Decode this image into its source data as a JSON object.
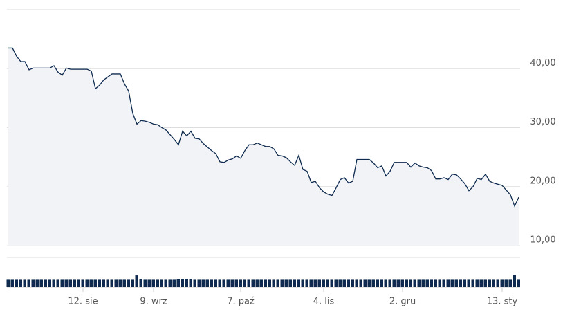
{
  "chart_data": {
    "type": "line",
    "categories": [
      null,
      null,
      null,
      null,
      null,
      null,
      null,
      null,
      null,
      null,
      null,
      null,
      null,
      null,
      null,
      null,
      null,
      null,
      "12. sie",
      null,
      null,
      null,
      null,
      null,
      null,
      null,
      null,
      null,
      null,
      null,
      null,
      null,
      null,
      null,
      null,
      "9. wrz",
      null,
      null,
      null,
      null,
      null,
      null,
      null,
      null,
      null,
      null,
      null,
      null,
      null,
      null,
      null,
      null,
      null,
      null,
      null,
      null,
      "7. paź",
      null,
      null,
      null,
      null,
      null,
      null,
      null,
      null,
      null,
      null,
      null,
      null,
      null,
      null,
      null,
      null,
      null,
      null,
      null,
      "4. lis",
      null,
      null,
      null,
      null,
      null,
      null,
      null,
      null,
      null,
      null,
      null,
      null,
      null,
      null,
      null,
      null,
      null,
      null,
      "2. gru",
      null,
      null,
      null,
      null,
      null,
      null,
      null,
      null,
      null,
      null,
      null,
      null,
      null,
      null,
      null,
      null,
      null,
      null,
      null,
      null,
      null,
      null,
      null,
      "13. sty",
      null,
      null,
      null,
      null
    ],
    "values": [
      43.5,
      43.5,
      42.1,
      41.2,
      41.2,
      39.8,
      40.1,
      40.1,
      40.1,
      40.1,
      40.1,
      40.5,
      39.4,
      38.9,
      40.1,
      39.9,
      39.9,
      39.9,
      39.9,
      39.9,
      39.6,
      36.6,
      37.2,
      38.1,
      38.6,
      39.1,
      39.1,
      39.1,
      37.4,
      36.2,
      32.4,
      30.6,
      31.2,
      31.1,
      30.9,
      30.6,
      30.5,
      30.0,
      29.6,
      28.8,
      28.0,
      27.1,
      29.4,
      28.6,
      29.4,
      28.2,
      28.1,
      27.3,
      26.7,
      26.1,
      25.6,
      24.2,
      24.1,
      24.5,
      24.7,
      25.2,
      24.8,
      26.1,
      27.1,
      27.1,
      27.4,
      27.1,
      26.8,
      26.8,
      26.4,
      25.3,
      25.2,
      24.9,
      24.2,
      23.6,
      25.3,
      22.9,
      22.6,
      20.7,
      20.9,
      19.8,
      19.1,
      18.7,
      18.5,
      19.8,
      21.2,
      21.5,
      20.6,
      20.9,
      24.6,
      24.6,
      24.6,
      24.6,
      24.0,
      23.2,
      23.5,
      21.8,
      22.6,
      24.1,
      24.1,
      24.1,
      24.1,
      23.3,
      24.0,
      23.5,
      23.3,
      23.2,
      22.7,
      21.3,
      21.3,
      21.5,
      21.2,
      22.1,
      22.0,
      21.3,
      20.5,
      19.3,
      20.0,
      21.4,
      21.2,
      22.1,
      20.9,
      20.6,
      20.4,
      20.2,
      19.4,
      18.6,
      16.7,
      18.2
    ],
    "volume": [
      10,
      10,
      10,
      10,
      10,
      10,
      10,
      10,
      10,
      10,
      10,
      10,
      10,
      10,
      10,
      10,
      10,
      10,
      10,
      10,
      10,
      10,
      10,
      10,
      10,
      10,
      10,
      10,
      10,
      10,
      10,
      16,
      11,
      10,
      10,
      10,
      10,
      10,
      10,
      10,
      10,
      11,
      11,
      11,
      11,
      10,
      10,
      10,
      10,
      10,
      10,
      10,
      10,
      10,
      10,
      10,
      10,
      10,
      10,
      10,
      10,
      10,
      10,
      10,
      10,
      10,
      10,
      10,
      10,
      10,
      10,
      10,
      10,
      10,
      10,
      10,
      10,
      10,
      10,
      10,
      10,
      10,
      10,
      10,
      10,
      10,
      10,
      10,
      10,
      10,
      10,
      10,
      10,
      10,
      10,
      10,
      10,
      10,
      10,
      10,
      10,
      10,
      10,
      10,
      10,
      10,
      10,
      10,
      10,
      10,
      10,
      10,
      10,
      10,
      10,
      10,
      10,
      10,
      10,
      10,
      10,
      10,
      17,
      10
    ],
    "color": "#0e2a4f",
    "fill": "#f1f3f6",
    "ylim": [
      10,
      50
    ],
    "yticks": [
      {
        "value": 10,
        "label": "10,00"
      },
      {
        "value": 20,
        "label": "20,00"
      },
      {
        "value": 30,
        "label": "30,00"
      },
      {
        "value": 40,
        "label": "40,00"
      }
    ],
    "grid": true
  }
}
